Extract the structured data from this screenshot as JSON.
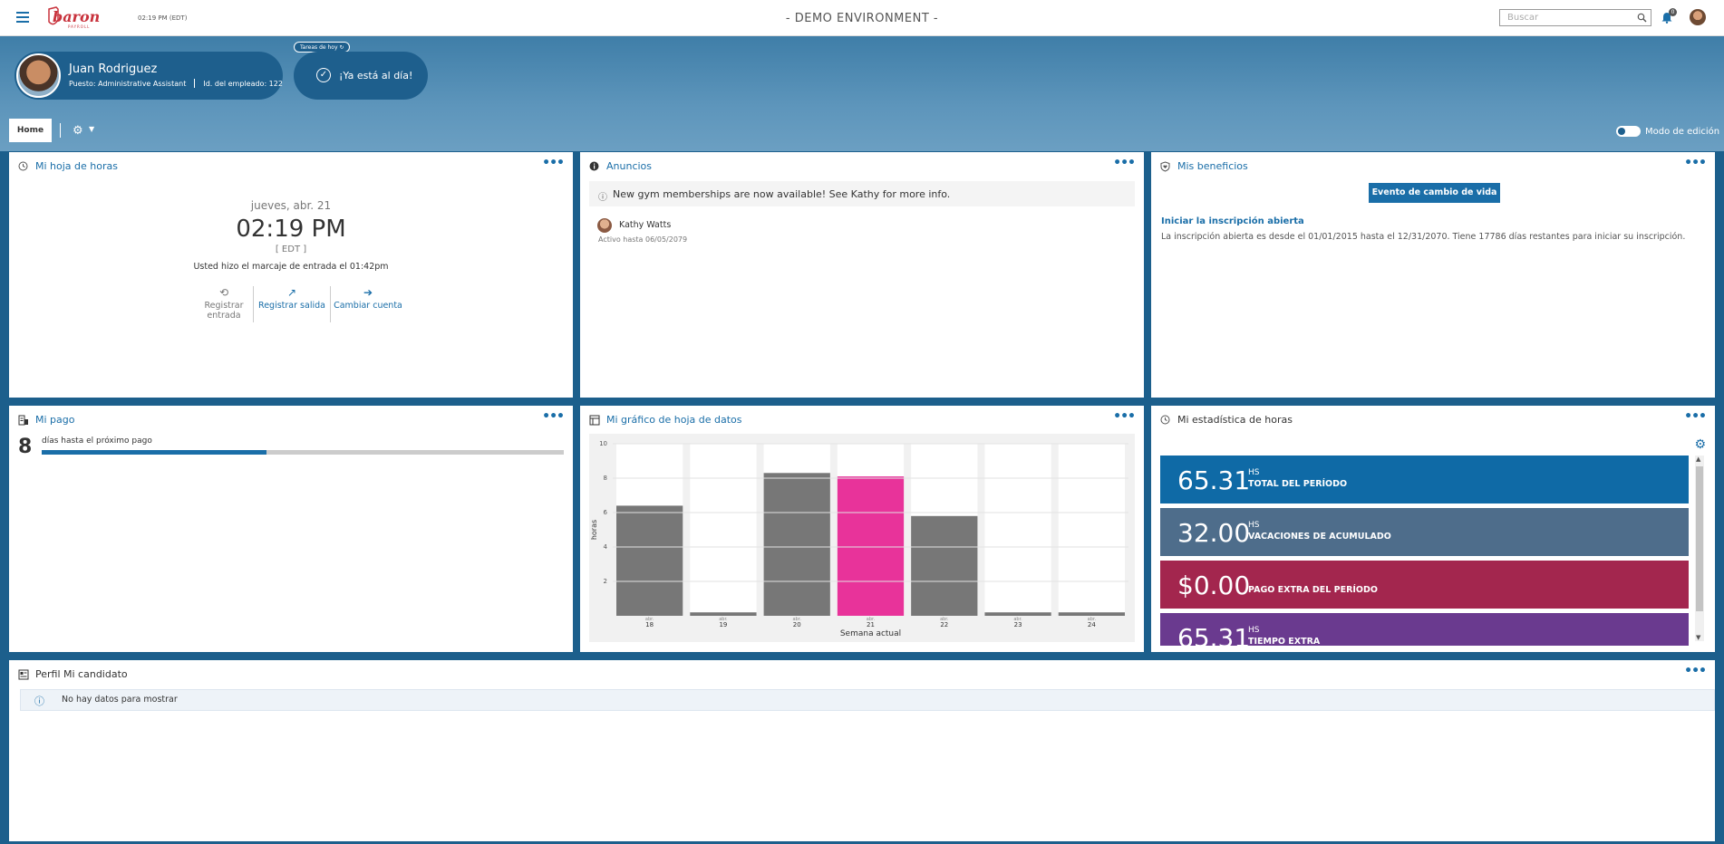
{
  "topbar": {
    "logo_text": "baron",
    "logo_sub": "PAYROLL",
    "time": "02:19 PM (EDT)",
    "environment": "- DEMO ENVIRONMENT -",
    "search_placeholder": "Buscar",
    "notification_count": "0"
  },
  "profile": {
    "name": "Juan Rodriguez",
    "position": "Puesto: Administrative Assistant",
    "employee_id": "Id. del empleado: 122",
    "tasks_tag": "Tareas de hoy",
    "status": "¡Ya está al día!"
  },
  "tabs": {
    "home": "Home",
    "edit_mode": "Modo de edición"
  },
  "timesheet": {
    "title": "Mi hoja de horas",
    "date": "jueves, abr. 21",
    "time": "02:19 PM",
    "timezone": "[ EDT ]",
    "message": "Usted hizo el marcaje de entrada el 01:42pm",
    "actions": [
      {
        "label": "Registrar entrada",
        "enabled": false
      },
      {
        "label": "Registrar salida",
        "enabled": true
      },
      {
        "label": "Cambiar cuenta",
        "enabled": true
      }
    ]
  },
  "announcements": {
    "title": "Anuncios",
    "message": "New gym memberships are now available! See Kathy for more info.",
    "author": "Kathy Watts",
    "active_until": "Activo hasta 06/05/2079"
  },
  "benefits": {
    "title": "Mis beneficios",
    "button": "Evento de cambio de vida",
    "link": "Iniciar la inscripción abierta",
    "description": "La inscripción abierta es desde el 01/01/2015 hasta el 12/31/2070. Tiene 17786 días restantes para iniciar su inscripción."
  },
  "pay": {
    "title": "Mi pago",
    "days": "8",
    "label": "días hasta el próximo pago",
    "progress": 0.43
  },
  "chart_panel": {
    "title": "Mi gráfico de hoja de datos"
  },
  "chart_data": {
    "type": "bar",
    "categories": [
      "18",
      "19",
      "20",
      "21",
      "22",
      "23",
      "24"
    ],
    "category_prefix": "abr.",
    "values": [
      6.4,
      0.2,
      8.3,
      8.1,
      5.8,
      0.2,
      0.2
    ],
    "highlight_index": 3,
    "highlight_color": "#e8339a",
    "bar_color": "#777777",
    "ylim": [
      0,
      10
    ],
    "yticks": [
      2,
      4,
      6,
      8,
      10
    ],
    "ylabel": "horas",
    "xlabel": "Semana actual"
  },
  "hours_stats": {
    "title": "Mi estadística de horas",
    "tiles": [
      {
        "value": "65.31",
        "unit": "HS",
        "label": "TOTAL DEL PERÍODO",
        "color": "#0f6aa6"
      },
      {
        "value": "32.00",
        "unit": "HS",
        "label": "VACACIONES DE ACUMULADO",
        "color": "#4e6d8b"
      },
      {
        "value": "$0.00",
        "unit": "",
        "label": "PAGO EXTRA DEL PERÍODO",
        "color": "#a3264e"
      },
      {
        "value": "65.31",
        "unit": "HS",
        "label": "TIEMPO EXTRA",
        "color": "#6a3a8f"
      }
    ]
  },
  "candidate": {
    "title": "Perfil Mi candidato",
    "empty": "No hay datos para mostrar"
  }
}
